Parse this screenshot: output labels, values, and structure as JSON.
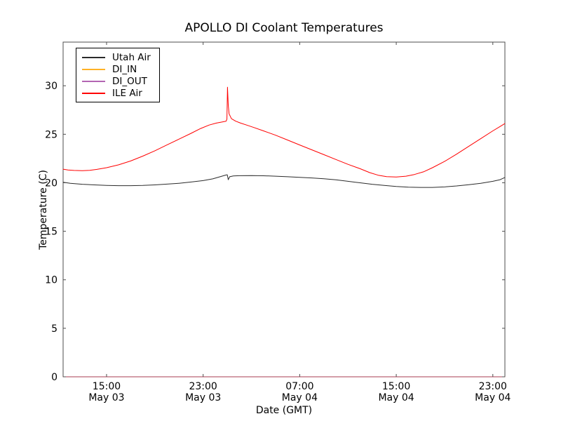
{
  "chart_data": {
    "type": "line",
    "title": "APOLLO DI Coolant Temperatures",
    "xlabel": "Date (GMT)",
    "ylabel": "Temperature (C)",
    "x_unit": "hours since May 03 00:00 GMT",
    "xlim": [
      11.4,
      48.0
    ],
    "ylim": [
      0,
      34.5
    ],
    "grid": false,
    "legend_position": "upper left",
    "tick_direction": "in",
    "spine_color": "#4d4d4d",
    "y_ticks": [
      0,
      5,
      10,
      15,
      20,
      25,
      30
    ],
    "x_ticks": [
      {
        "t": 15,
        "time": "15:00",
        "date": "May 03"
      },
      {
        "t": 23,
        "time": "23:00",
        "date": "May 03"
      },
      {
        "t": 31,
        "time": "07:00",
        "date": "May 04"
      },
      {
        "t": 39,
        "time": "15:00",
        "date": "May 04"
      },
      {
        "t": 47,
        "time": "23:00",
        "date": "May 04"
      }
    ],
    "series": [
      {
        "name": "Utah Air",
        "color": "#2b2b2b",
        "width": 1,
        "opacity": 1,
        "points": [
          [
            11.4,
            20.05
          ],
          [
            12,
            19.95
          ],
          [
            13,
            19.85
          ],
          [
            14,
            19.78
          ],
          [
            15,
            19.73
          ],
          [
            16,
            19.7
          ],
          [
            17,
            19.7
          ],
          [
            18,
            19.72
          ],
          [
            19,
            19.78
          ],
          [
            20,
            19.86
          ],
          [
            21,
            19.95
          ],
          [
            22,
            20.08
          ],
          [
            23,
            20.22
          ],
          [
            23.8,
            20.4
          ],
          [
            24.4,
            20.62
          ],
          [
            24.9,
            20.8
          ],
          [
            25.0,
            20.82
          ],
          [
            25.08,
            20.32
          ],
          [
            25.2,
            20.62
          ],
          [
            25.5,
            20.7
          ],
          [
            26,
            20.73
          ],
          [
            27,
            20.74
          ],
          [
            28,
            20.72
          ],
          [
            29,
            20.68
          ],
          [
            30,
            20.62
          ],
          [
            31,
            20.56
          ],
          [
            32,
            20.5
          ],
          [
            33,
            20.42
          ],
          [
            34,
            20.3
          ],
          [
            35,
            20.15
          ],
          [
            36,
            20.0
          ],
          [
            37,
            19.85
          ],
          [
            38,
            19.72
          ],
          [
            39,
            19.62
          ],
          [
            40,
            19.55
          ],
          [
            41,
            19.52
          ],
          [
            42,
            19.52
          ],
          [
            43,
            19.57
          ],
          [
            44,
            19.67
          ],
          [
            45,
            19.8
          ],
          [
            46,
            19.95
          ],
          [
            47,
            20.15
          ],
          [
            47.6,
            20.32
          ],
          [
            48,
            20.55
          ]
        ]
      },
      {
        "name": "DI_IN",
        "color": "#ffa500",
        "width": 1,
        "opacity": 0.85,
        "points": [
          [
            11.4,
            0
          ],
          [
            48,
            0
          ]
        ]
      },
      {
        "name": "DI_OUT",
        "color": "#800080",
        "width": 1,
        "opacity": 0.6,
        "points": [
          [
            11.4,
            0
          ],
          [
            48,
            0
          ]
        ]
      },
      {
        "name": "ILE Air",
        "color": "#ff0000",
        "width": 1,
        "opacity": 1,
        "points": [
          [
            11.4,
            21.4
          ],
          [
            11.8,
            21.32
          ],
          [
            12.3,
            21.27
          ],
          [
            13,
            21.24
          ],
          [
            13.6,
            21.28
          ],
          [
            14.2,
            21.38
          ],
          [
            15,
            21.55
          ],
          [
            16,
            21.85
          ],
          [
            17,
            22.25
          ],
          [
            18,
            22.75
          ],
          [
            19,
            23.3
          ],
          [
            20,
            23.9
          ],
          [
            21,
            24.5
          ],
          [
            22,
            25.1
          ],
          [
            22.8,
            25.6
          ],
          [
            23.5,
            25.95
          ],
          [
            24.1,
            26.15
          ],
          [
            24.6,
            26.28
          ],
          [
            24.9,
            26.35
          ],
          [
            24.97,
            26.55
          ],
          [
            25.02,
            29.85
          ],
          [
            25.08,
            28.0
          ],
          [
            25.15,
            27.1
          ],
          [
            25.35,
            26.6
          ],
          [
            25.7,
            26.35
          ],
          [
            26.1,
            26.15
          ],
          [
            26.6,
            25.95
          ],
          [
            27.2,
            25.7
          ],
          [
            28,
            25.35
          ],
          [
            29,
            24.9
          ],
          [
            30,
            24.4
          ],
          [
            31,
            23.9
          ],
          [
            32,
            23.4
          ],
          [
            33,
            22.9
          ],
          [
            34,
            22.4
          ],
          [
            35,
            21.9
          ],
          [
            36,
            21.45
          ],
          [
            36.8,
            21.05
          ],
          [
            37.5,
            20.78
          ],
          [
            38.2,
            20.63
          ],
          [
            39,
            20.6
          ],
          [
            39.8,
            20.68
          ],
          [
            40.5,
            20.85
          ],
          [
            41.3,
            21.15
          ],
          [
            42,
            21.55
          ],
          [
            43,
            22.2
          ],
          [
            44,
            22.95
          ],
          [
            45,
            23.75
          ],
          [
            46,
            24.55
          ],
          [
            47,
            25.35
          ],
          [
            47.6,
            25.8
          ],
          [
            48,
            26.1
          ]
        ]
      }
    ]
  }
}
